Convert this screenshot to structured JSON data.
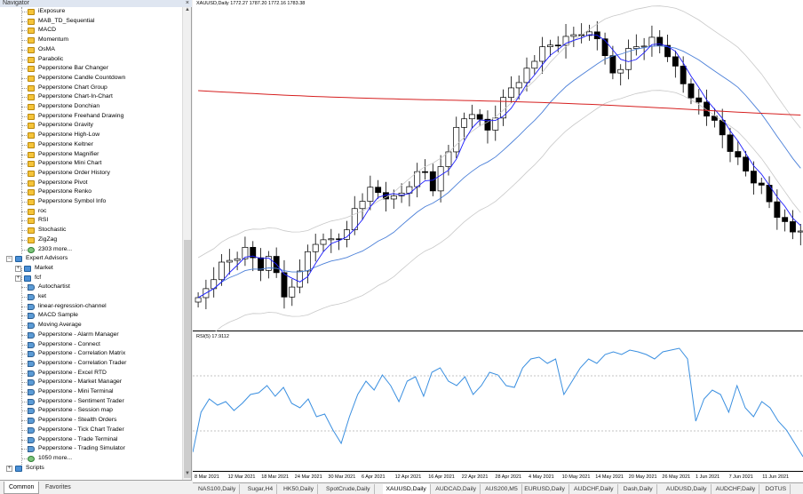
{
  "navigator": {
    "title": "Navigator",
    "close_glyph": "×",
    "items": [
      {
        "label": "iExposure",
        "icon": "indicator-icon",
        "level": 2
      },
      {
        "label": "MAB_TD_Sequential",
        "icon": "indicator-icon",
        "level": 2
      },
      {
        "label": "MACD",
        "icon": "indicator-icon",
        "level": 2
      },
      {
        "label": "Momentum",
        "icon": "indicator-icon",
        "level": 2
      },
      {
        "label": "OsMA",
        "icon": "indicator-icon",
        "level": 2
      },
      {
        "label": "Parabolic",
        "icon": "indicator-icon",
        "level": 2
      },
      {
        "label": "Pepperstone Bar Changer",
        "icon": "indicator-icon",
        "level": 2
      },
      {
        "label": "Pepperstone Candle Countdown",
        "icon": "indicator-icon",
        "level": 2
      },
      {
        "label": "Pepperstone Chart Group",
        "icon": "indicator-icon",
        "level": 2
      },
      {
        "label": "Pepperstone Chart-In-Chart",
        "icon": "indicator-icon",
        "level": 2
      },
      {
        "label": "Pepperstone Donchian",
        "icon": "indicator-icon",
        "level": 2
      },
      {
        "label": "Pepperstone Freehand Drawing",
        "icon": "indicator-icon",
        "level": 2
      },
      {
        "label": "Pepperstone Gravity",
        "icon": "indicator-icon",
        "level": 2
      },
      {
        "label": "Pepperstone High-Low",
        "icon": "indicator-icon",
        "level": 2
      },
      {
        "label": "Pepperstone Keltner",
        "icon": "indicator-icon",
        "level": 2
      },
      {
        "label": "Pepperstone Magnifier",
        "icon": "indicator-icon",
        "level": 2
      },
      {
        "label": "Pepperstone Mini Chart",
        "icon": "indicator-icon",
        "level": 2
      },
      {
        "label": "Pepperstone Order History",
        "icon": "indicator-icon",
        "level": 2
      },
      {
        "label": "Pepperstone Pivot",
        "icon": "indicator-icon",
        "level": 2
      },
      {
        "label": "Pepperstone Renko",
        "icon": "indicator-icon",
        "level": 2
      },
      {
        "label": "Pepperstone Symbol Info",
        "icon": "indicator-icon",
        "level": 2
      },
      {
        "label": "roc",
        "icon": "indicator-icon",
        "level": 2
      },
      {
        "label": "RSI",
        "icon": "indicator-icon",
        "level": 2
      },
      {
        "label": "Stochastic",
        "icon": "indicator-icon",
        "level": 2
      },
      {
        "label": "ZigZag",
        "icon": "indicator-icon",
        "level": 2
      },
      {
        "label": "2303 more...",
        "icon": "more-icon",
        "level": 2
      },
      {
        "label": "Expert Advisors",
        "icon": "folder-icon",
        "level": 0,
        "expander": "−"
      },
      {
        "label": "Market",
        "icon": "folder-icon",
        "level": 1,
        "expander": "+"
      },
      {
        "label": "fcf",
        "icon": "folder-icon",
        "level": 1,
        "expander": "+"
      },
      {
        "label": "Autochartist",
        "icon": "expert-icon",
        "level": 2
      },
      {
        "label": "ket",
        "icon": "expert-icon",
        "level": 2
      },
      {
        "label": "linear-regression-channel",
        "icon": "expert-icon",
        "level": 2
      },
      {
        "label": "MACD Sample",
        "icon": "expert-icon",
        "level": 2
      },
      {
        "label": "Moving Average",
        "icon": "expert-icon",
        "level": 2
      },
      {
        "label": "Pepperstone - Alarm Manager",
        "icon": "expert-icon",
        "level": 2
      },
      {
        "label": "Pepperstone - Connect",
        "icon": "expert-icon",
        "level": 2
      },
      {
        "label": "Pepperstone - Correlation Matrix",
        "icon": "expert-icon",
        "level": 2
      },
      {
        "label": "Pepperstone - Correlation Trader",
        "icon": "expert-icon",
        "level": 2
      },
      {
        "label": "Pepperstone - Excel RTD",
        "icon": "expert-icon",
        "level": 2
      },
      {
        "label": "Pepperstone - Market Manager",
        "icon": "expert-icon",
        "level": 2
      },
      {
        "label": "Pepperstone - Mini Terminal",
        "icon": "expert-icon",
        "level": 2
      },
      {
        "label": "Pepperstone - Sentiment Trader",
        "icon": "expert-icon",
        "level": 2
      },
      {
        "label": "Pepperstone - Session map",
        "icon": "expert-icon",
        "level": 2
      },
      {
        "label": "Pepperstone - Stealth Orders",
        "icon": "expert-icon",
        "level": 2
      },
      {
        "label": "Pepperstone - Tick Chart Trader",
        "icon": "expert-icon",
        "level": 2
      },
      {
        "label": "Pepperstone - Trade Terminal",
        "icon": "expert-icon",
        "level": 2
      },
      {
        "label": "Pepperstone - Trading Simulator",
        "icon": "expert-icon",
        "level": 2
      },
      {
        "label": "1050 more...",
        "icon": "more-icon",
        "level": 2
      },
      {
        "label": "Scripts",
        "icon": "folder-icon",
        "level": 0,
        "expander": "+"
      }
    ],
    "tabs": [
      {
        "label": "Common",
        "active": true
      },
      {
        "label": "Favorites",
        "active": false
      }
    ]
  },
  "chart": {
    "header": "XAUUSD,Daily  1772.27 1787.20 1772.16 1783.38",
    "rsi_header": "RSI(5) 17.9112",
    "dates": [
      "8 Mar 2021",
      "12 Mar 2021",
      "18 Mar 2021",
      "24 Mar 2021",
      "30 Mar 2021",
      "6 Apr 2021",
      "12 Apr 2021",
      "16 Apr 2021",
      "22 Apr 2021",
      "28 Apr 2021",
      "4 May 2021",
      "10 May 2021",
      "14 May 2021",
      "20 May 2021",
      "26 May 2021",
      "1 Jun 2021",
      "7 Jun 2021",
      "11 Jun 2021"
    ],
    "colors": {
      "bull_candle": "#ffffff",
      "bear_candle": "#000000",
      "ma_fast": "#1a1aff",
      "ma_mid": "#4a7fd8",
      "ma_slow": "#d62020",
      "bands": "#c8c8c8",
      "rsi_line": "#3a8fe0",
      "rsi_levels": "#b0b0b0"
    }
  },
  "symbol_tabs": [
    "NAS100,Daily",
    "Sugar,H4",
    "HK50,Daily",
    "SpotCrude,Daily",
    "XAUUSD,Daily",
    "AUDCAD,Daily",
    "AUS200,M5",
    "EURUSD,Daily",
    "AUDCHF,Daily",
    "Dash,Daily",
    "AUDUSD,Daily",
    "AUDCHF,Daily",
    "DOTUS"
  ],
  "active_symbol_tab": "XAUUSD,Daily"
}
